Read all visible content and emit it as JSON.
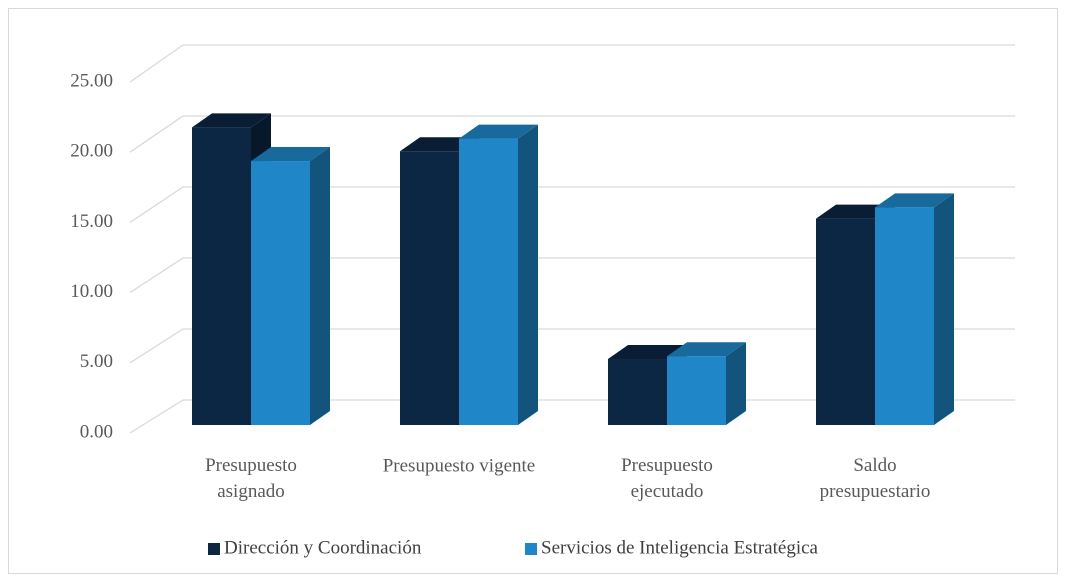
{
  "chart_data": {
    "type": "bar3d",
    "categories": [
      "Presupuesto asignado",
      "Presupuesto vigente",
      "Presupuesto ejecutado",
      "Saldo presupuestario"
    ],
    "series": [
      {
        "name": "Dirección y Coordinación",
        "color": "#0b2744",
        "values": [
          21.2,
          19.5,
          4.7,
          14.7
        ]
      },
      {
        "name": "Servicios de Inteligencia Estratégica",
        "color": "#1f87c8",
        "values": [
          18.8,
          20.4,
          4.9,
          15.5
        ]
      }
    ],
    "ylim": [
      0,
      25
    ],
    "yticks": [
      {
        "value": 0,
        "label": "0.00"
      },
      {
        "value": 5,
        "label": "5.00"
      },
      {
        "value": 10,
        "label": "10.00"
      },
      {
        "value": 15,
        "label": "15.00"
      },
      {
        "value": 20,
        "label": "20.00"
      },
      {
        "value": 25,
        "label": "25.00"
      }
    ],
    "grid": true,
    "legend": "bottom"
  }
}
